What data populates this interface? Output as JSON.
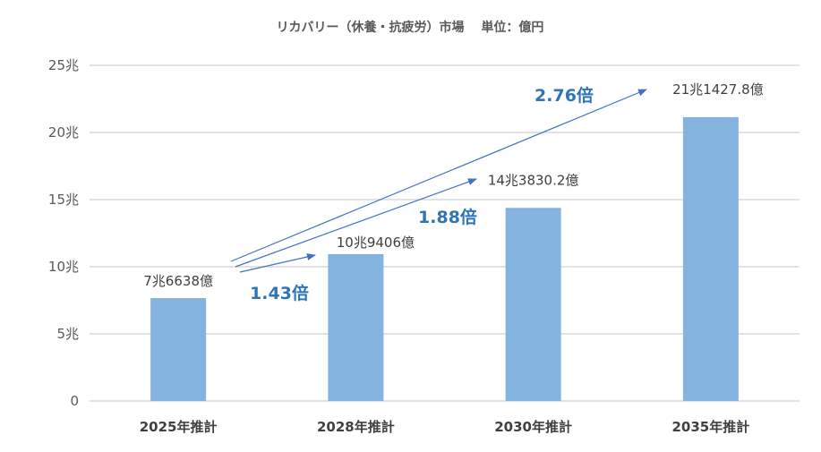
{
  "chart_data": {
    "type": "bar",
    "title": "リカバリー（休養・抗疲労）市場　 単位：億円",
    "categories": [
      "2025年推計",
      "2028年推計",
      "2030年推計",
      "2035年推計"
    ],
    "values_cho": [
      7.6638,
      10.9406,
      14.38302,
      21.14278
    ],
    "values_oku": [
      76638,
      109406,
      143830.2,
      211427.8
    ],
    "data_labels": [
      "7兆6638億",
      "10兆9406億",
      "14兆3830.2億",
      "21兆1427.8億"
    ],
    "yticks": [
      0,
      5,
      10,
      15,
      20,
      25
    ],
    "ytick_labels": [
      "0",
      "5兆",
      "10兆",
      "15兆",
      "20兆",
      "25兆"
    ],
    "ylim": [
      0,
      25
    ],
    "grid": true,
    "bar_color": "#85B3DF",
    "annotations": [
      {
        "text": "1.43倍",
        "from": "2025年推計",
        "to": "2028年推計"
      },
      {
        "text": "1.88倍",
        "from": "2025年推計",
        "to": "2030年推計"
      },
      {
        "text": "2.76倍",
        "from": "2025年推計",
        "to": "2035年推計"
      }
    ],
    "annotation_color": "#2E75B6",
    "arrow_color": "#4472C4"
  }
}
